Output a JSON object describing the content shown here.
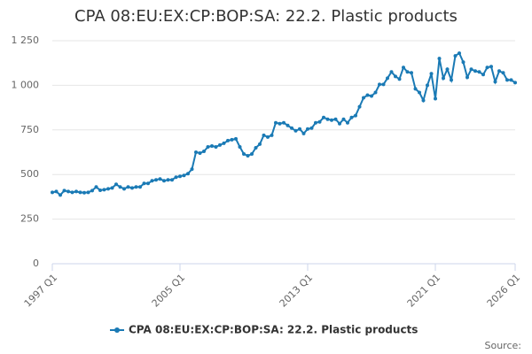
{
  "chart_data": {
    "type": "line",
    "title": "CPA 08:EU:EX:CP:BOP:SA: 22.2. Plastic products",
    "source": "Source:",
    "categories": [
      "1997 Q1",
      null,
      null,
      null,
      null,
      null,
      null,
      null,
      null,
      null,
      null,
      null,
      null,
      null,
      null,
      null,
      null,
      null,
      null,
      null,
      null,
      null,
      null,
      null,
      null,
      null,
      null,
      null,
      null,
      null,
      null,
      null,
      "2005 Q1",
      null,
      null,
      null,
      null,
      null,
      null,
      null,
      null,
      null,
      null,
      null,
      null,
      null,
      null,
      null,
      null,
      null,
      null,
      null,
      null,
      null,
      null,
      null,
      null,
      null,
      null,
      null,
      null,
      null,
      null,
      null,
      "2013 Q1",
      null,
      null,
      null,
      null,
      null,
      null,
      null,
      null,
      null,
      null,
      null,
      null,
      null,
      null,
      null,
      null,
      null,
      null,
      null,
      null,
      null,
      null,
      null,
      null,
      null,
      null,
      null,
      null,
      null,
      null,
      null,
      "2021 Q1",
      null,
      null,
      null,
      null,
      null,
      null,
      null,
      null,
      null,
      null,
      null,
      null,
      null,
      null,
      null,
      null,
      null,
      null,
      null,
      "2026 Q1"
    ],
    "series": [
      {
        "name": "CPA 08:EU:EX:CP:BOP:SA: 22.2. Plastic products",
        "color": "#1a7ab5",
        "values": [
          400,
          405,
          385,
          410,
          405,
          400,
          405,
          400,
          398,
          400,
          410,
          430,
          412,
          415,
          420,
          425,
          445,
          430,
          420,
          430,
          425,
          430,
          430,
          450,
          450,
          465,
          470,
          475,
          465,
          470,
          470,
          485,
          490,
          495,
          505,
          530,
          625,
          620,
          630,
          655,
          660,
          655,
          665,
          675,
          690,
          695,
          700,
          655,
          615,
          605,
          615,
          650,
          670,
          720,
          710,
          720,
          790,
          785,
          790,
          775,
          760,
          745,
          755,
          730,
          755,
          760,
          790,
          795,
          820,
          810,
          805,
          810,
          785,
          810,
          790,
          820,
          830,
          880,
          930,
          945,
          940,
          960,
          1005,
          1005,
          1040,
          1075,
          1050,
          1035,
          1100,
          1075,
          1070,
          980,
          960,
          915,
          1000,
          1065,
          925,
          1150,
          1040,
          1090,
          1030,
          1165,
          1180,
          1130,
          1045,
          1090,
          1080,
          1075,
          1060,
          1100,
          1105,
          1020,
          1080,
          1070,
          1030,
          1030,
          1015
        ]
      }
    ],
    "ylim": [
      0,
      1250
    ],
    "yticks": [
      0,
      250,
      500,
      750,
      {
        "value": 1000,
        "label": "1 000"
      },
      {
        "value": 1250,
        "label": "1 250"
      }
    ],
    "grid": true,
    "legend": "bottom"
  }
}
